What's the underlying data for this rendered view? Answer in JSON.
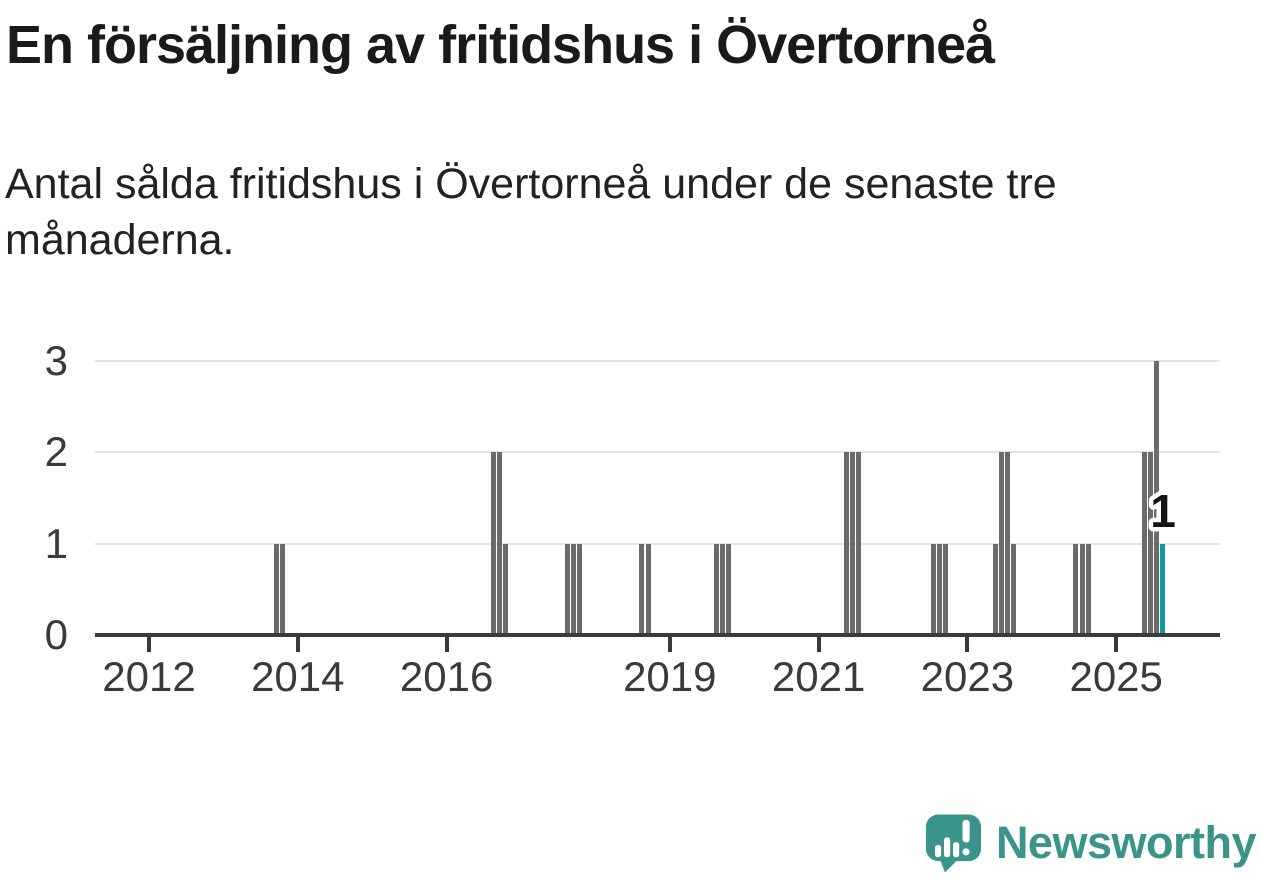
{
  "header": {
    "title": "En försäljning av fritidshus i Övertorneå",
    "subtitle": "Antal sålda fritidshus i Övertorneå under de senaste tre månaderna."
  },
  "chart_data": {
    "type": "bar",
    "title": "En försäljning av fritidshus i Övertorneå",
    "subtitle": "Antal sålda fritidshus i Övertorneå under de senaste tre månaderna.",
    "xlabel": "",
    "ylabel": "",
    "ylim": [
      0,
      3
    ],
    "ytick_labels": [
      "0",
      "1",
      "2",
      "3"
    ],
    "xtick_years": [
      2012,
      2014,
      2016,
      2019,
      2021,
      2023,
      2025
    ],
    "x_unit": "month",
    "grid": "horizontal",
    "legend": "none",
    "bars": [
      {
        "month": "2013-09",
        "value": 1
      },
      {
        "month": "2013-10",
        "value": 1
      },
      {
        "month": "2016-08",
        "value": 2
      },
      {
        "month": "2016-09",
        "value": 2
      },
      {
        "month": "2016-10",
        "value": 1
      },
      {
        "month": "2017-08",
        "value": 1
      },
      {
        "month": "2017-09",
        "value": 1
      },
      {
        "month": "2017-10",
        "value": 1
      },
      {
        "month": "2018-08",
        "value": 1
      },
      {
        "month": "2018-09",
        "value": 1
      },
      {
        "month": "2019-08",
        "value": 1
      },
      {
        "month": "2019-09",
        "value": 1
      },
      {
        "month": "2019-10",
        "value": 1
      },
      {
        "month": "2021-05",
        "value": 2
      },
      {
        "month": "2021-06",
        "value": 2
      },
      {
        "month": "2021-07",
        "value": 2
      },
      {
        "month": "2022-07",
        "value": 1
      },
      {
        "month": "2022-08",
        "value": 1
      },
      {
        "month": "2022-09",
        "value": 1
      },
      {
        "month": "2023-05",
        "value": 1
      },
      {
        "month": "2023-06",
        "value": 2
      },
      {
        "month": "2023-07",
        "value": 2
      },
      {
        "month": "2023-08",
        "value": 1
      },
      {
        "month": "2024-06",
        "value": 1
      },
      {
        "month": "2024-07",
        "value": 1
      },
      {
        "month": "2024-08",
        "value": 1
      },
      {
        "month": "2025-05",
        "value": 2
      },
      {
        "month": "2025-06",
        "value": 2
      },
      {
        "month": "2025-07",
        "value": 3
      },
      {
        "month": "2025-08",
        "value": 1,
        "highlight": true
      }
    ],
    "annotation": {
      "text": "1",
      "month": "2025-08"
    },
    "colors": {
      "bar": "#6b6b6b",
      "highlight": "#0d9c9c",
      "gridline": "#e2e2e2",
      "axis": "#3a3a3a",
      "tick_label": "#3a3a3a"
    }
  },
  "footer": {
    "brand": "Newsworthy",
    "brand_color": "#3a9489",
    "logo_icon": "newsworthy-bubble-bar-chart-icon"
  }
}
